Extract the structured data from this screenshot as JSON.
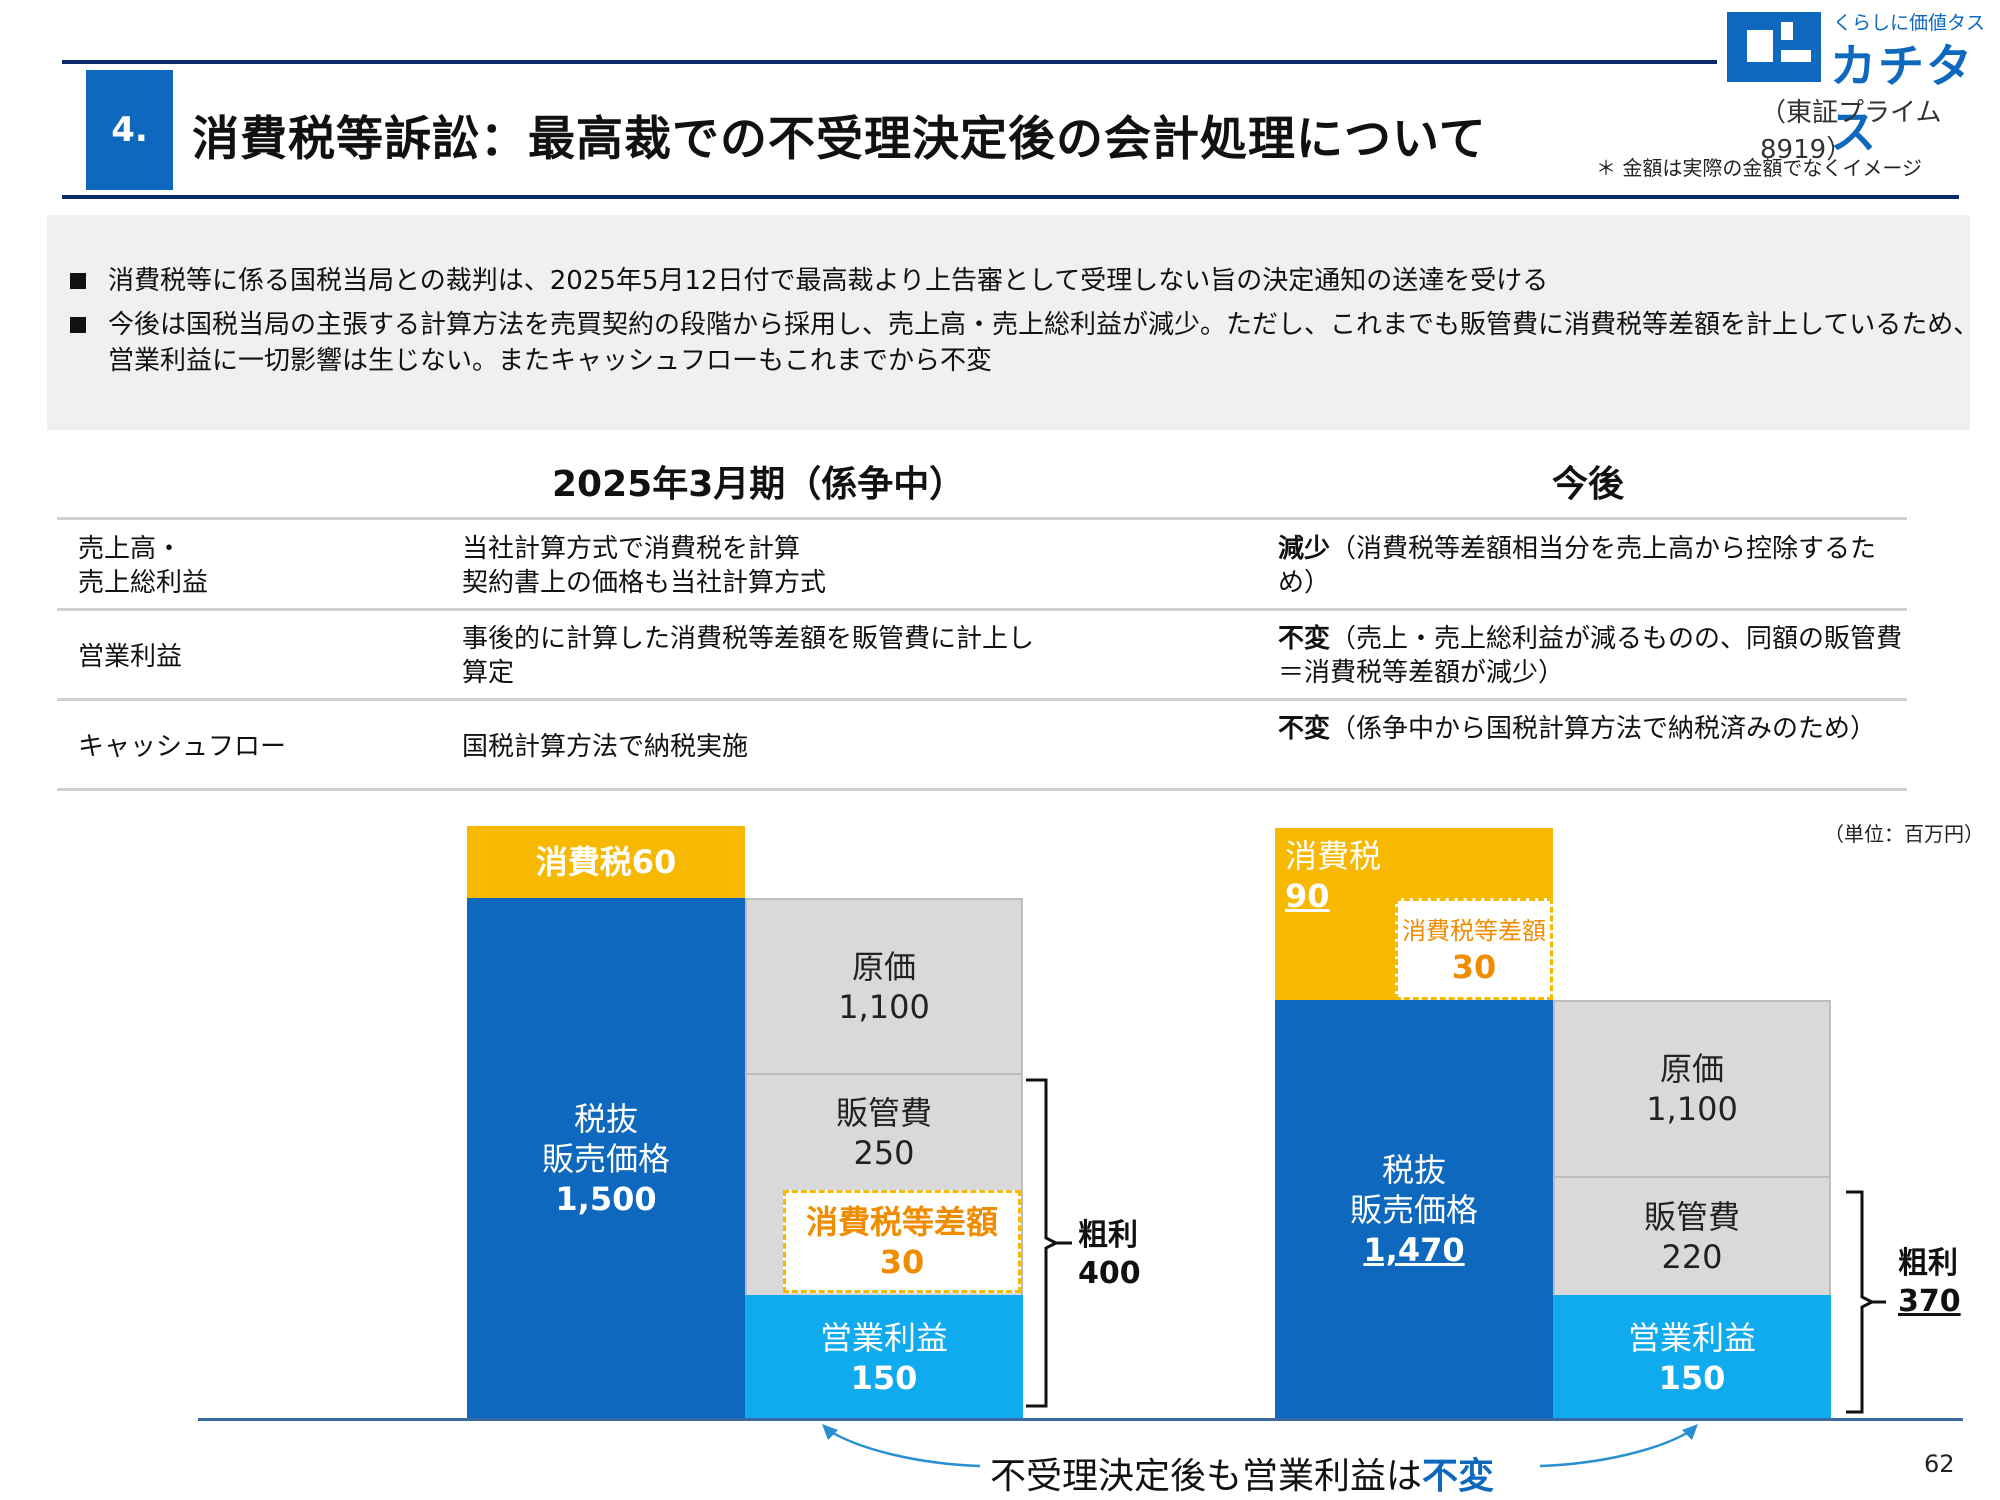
{
  "header": {
    "section_number": "4.",
    "title": "消費税等訴訟：最高裁での不受理決定後の会計処理について",
    "logo_tagline": "くらしに価値タス",
    "logo_name": "カチタス",
    "logo_ticker": "（東証プライム8919）",
    "note": "＊ 金額は実際の金額でなくイメージ"
  },
  "summary": {
    "bullets": [
      "消費税等に係る国税当局との裁判は、2025年5月12日付で最高裁より上告審として受理しない旨の決定通知の送達を受ける",
      "今後は国税当局の主張する計算方法を売買契約の段階から採用し、売上高・売上総利益が減少。ただし、これまでも販管費に消費税等差額を計上しているため、営業利益に一切影響は生じない。またキャッシュフローもこれまでから不変"
    ]
  },
  "table": {
    "col_current": "2025年3月期（係争中）",
    "col_future": "今後",
    "rows": [
      {
        "label": "売上高・\n売上総利益",
        "current": "当社計算方式で消費税を計算\n契約書上の価格も当社計算方式",
        "future_bold": "減少",
        "future": "（消費税等差額相当分を売上高から控除するため）"
      },
      {
        "label": "営業利益",
        "current": "事後的に計算した消費税等差額を販管費に計上し\n算定",
        "future_bold": "不変",
        "future": "（売上・売上総利益が減るものの、同額の販管費＝消費税等差額が減少）"
      },
      {
        "label": "キャッシュフロー",
        "current": "国税計算方法で納税実施",
        "future_bold": "不変",
        "future": "（係争中から国税計算方法で納税済みのため）"
      }
    ]
  },
  "unit": "（単位：百万円）",
  "left_chart": {
    "tax_label": "消費税60",
    "price_label": "税抜\n販売価格",
    "price_value": "1,500",
    "cost_label": "原価",
    "cost_value": "1,100",
    "sga_label": "販管費",
    "sga_value": "250",
    "diff_label": "消費税等差額",
    "diff_value": "30",
    "op_label": "営業利益",
    "op_value": "150",
    "gross_label": "粗利",
    "gross_value": "400"
  },
  "right_chart": {
    "tax_label": "消費税",
    "tax_value": "90",
    "diff_label": "消費税等差額",
    "diff_value": "30",
    "price_label": "税抜\n販売価格",
    "price_value": "1,470",
    "cost_label": "原価",
    "cost_value": "1,100",
    "sga_label": "販管費",
    "sga_value": "220",
    "op_label": "営業利益",
    "op_value": "150",
    "gross_label": "粗利",
    "gross_value": "370"
  },
  "bottom": {
    "message_prefix": "不受理決定後も営業利益は",
    "message_emph": "不変",
    "page_number": "62"
  },
  "colors": {
    "brand_blue": "#0d68be",
    "tax_yellow": "#f6b800",
    "op_cyan": "#10aaee",
    "grey": "#d9d9d9",
    "diff_orange": "#f08c00"
  }
}
